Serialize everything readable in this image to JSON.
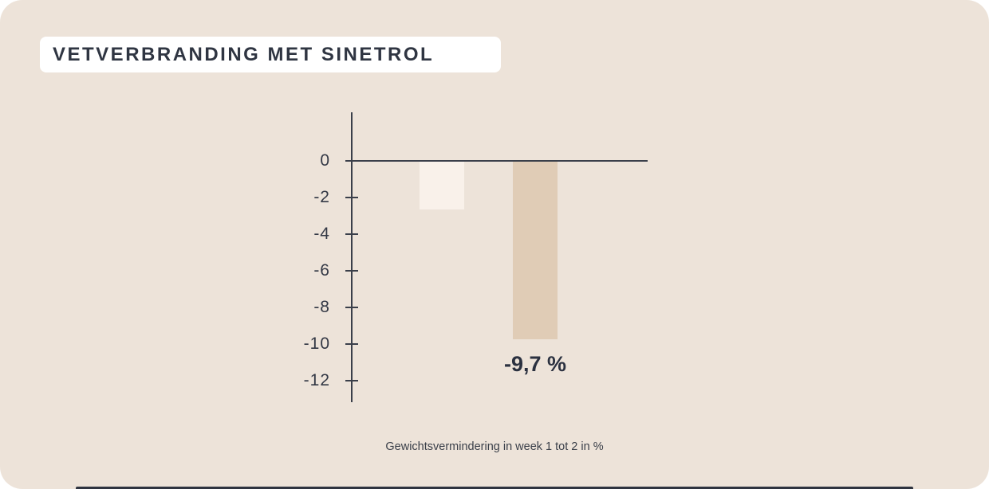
{
  "page": {
    "title": "VETVERBRANDING MET SINETROL",
    "caption": "Gewichtsvermindering in week 1 tot 2 in %"
  },
  "colors": {
    "page_background": "#ffffff",
    "card_background": "#ede3d9",
    "title_box_background": "#ffffff",
    "title_text": "#2f3542",
    "axis": "#3a3f4a",
    "tick_label_text": "#333845",
    "bar_1": "#f9f1ea",
    "bar_2": "#e0ccb6",
    "bar_value_label_text": "#2b3140",
    "bottom_edge": "#2f3440"
  },
  "chart_data": {
    "type": "bar",
    "title": "VETVERBRANDING MET SINETROL",
    "categories": [
      "",
      ""
    ],
    "values": [
      -2.6,
      -9.7
    ],
    "data_labels": [
      "",
      "-9,7 %"
    ],
    "xlabel": "Gewichtsvermindering in week 1 tot 2 in %",
    "ylabel": "",
    "yticks": [
      0,
      -2,
      -4,
      -6,
      -8,
      -10,
      -12
    ],
    "ylim": [
      -13.2,
      2.7
    ],
    "legend": false,
    "grid": false,
    "bar_colors": [
      "#f9f1ea",
      "#e0ccb6"
    ]
  }
}
